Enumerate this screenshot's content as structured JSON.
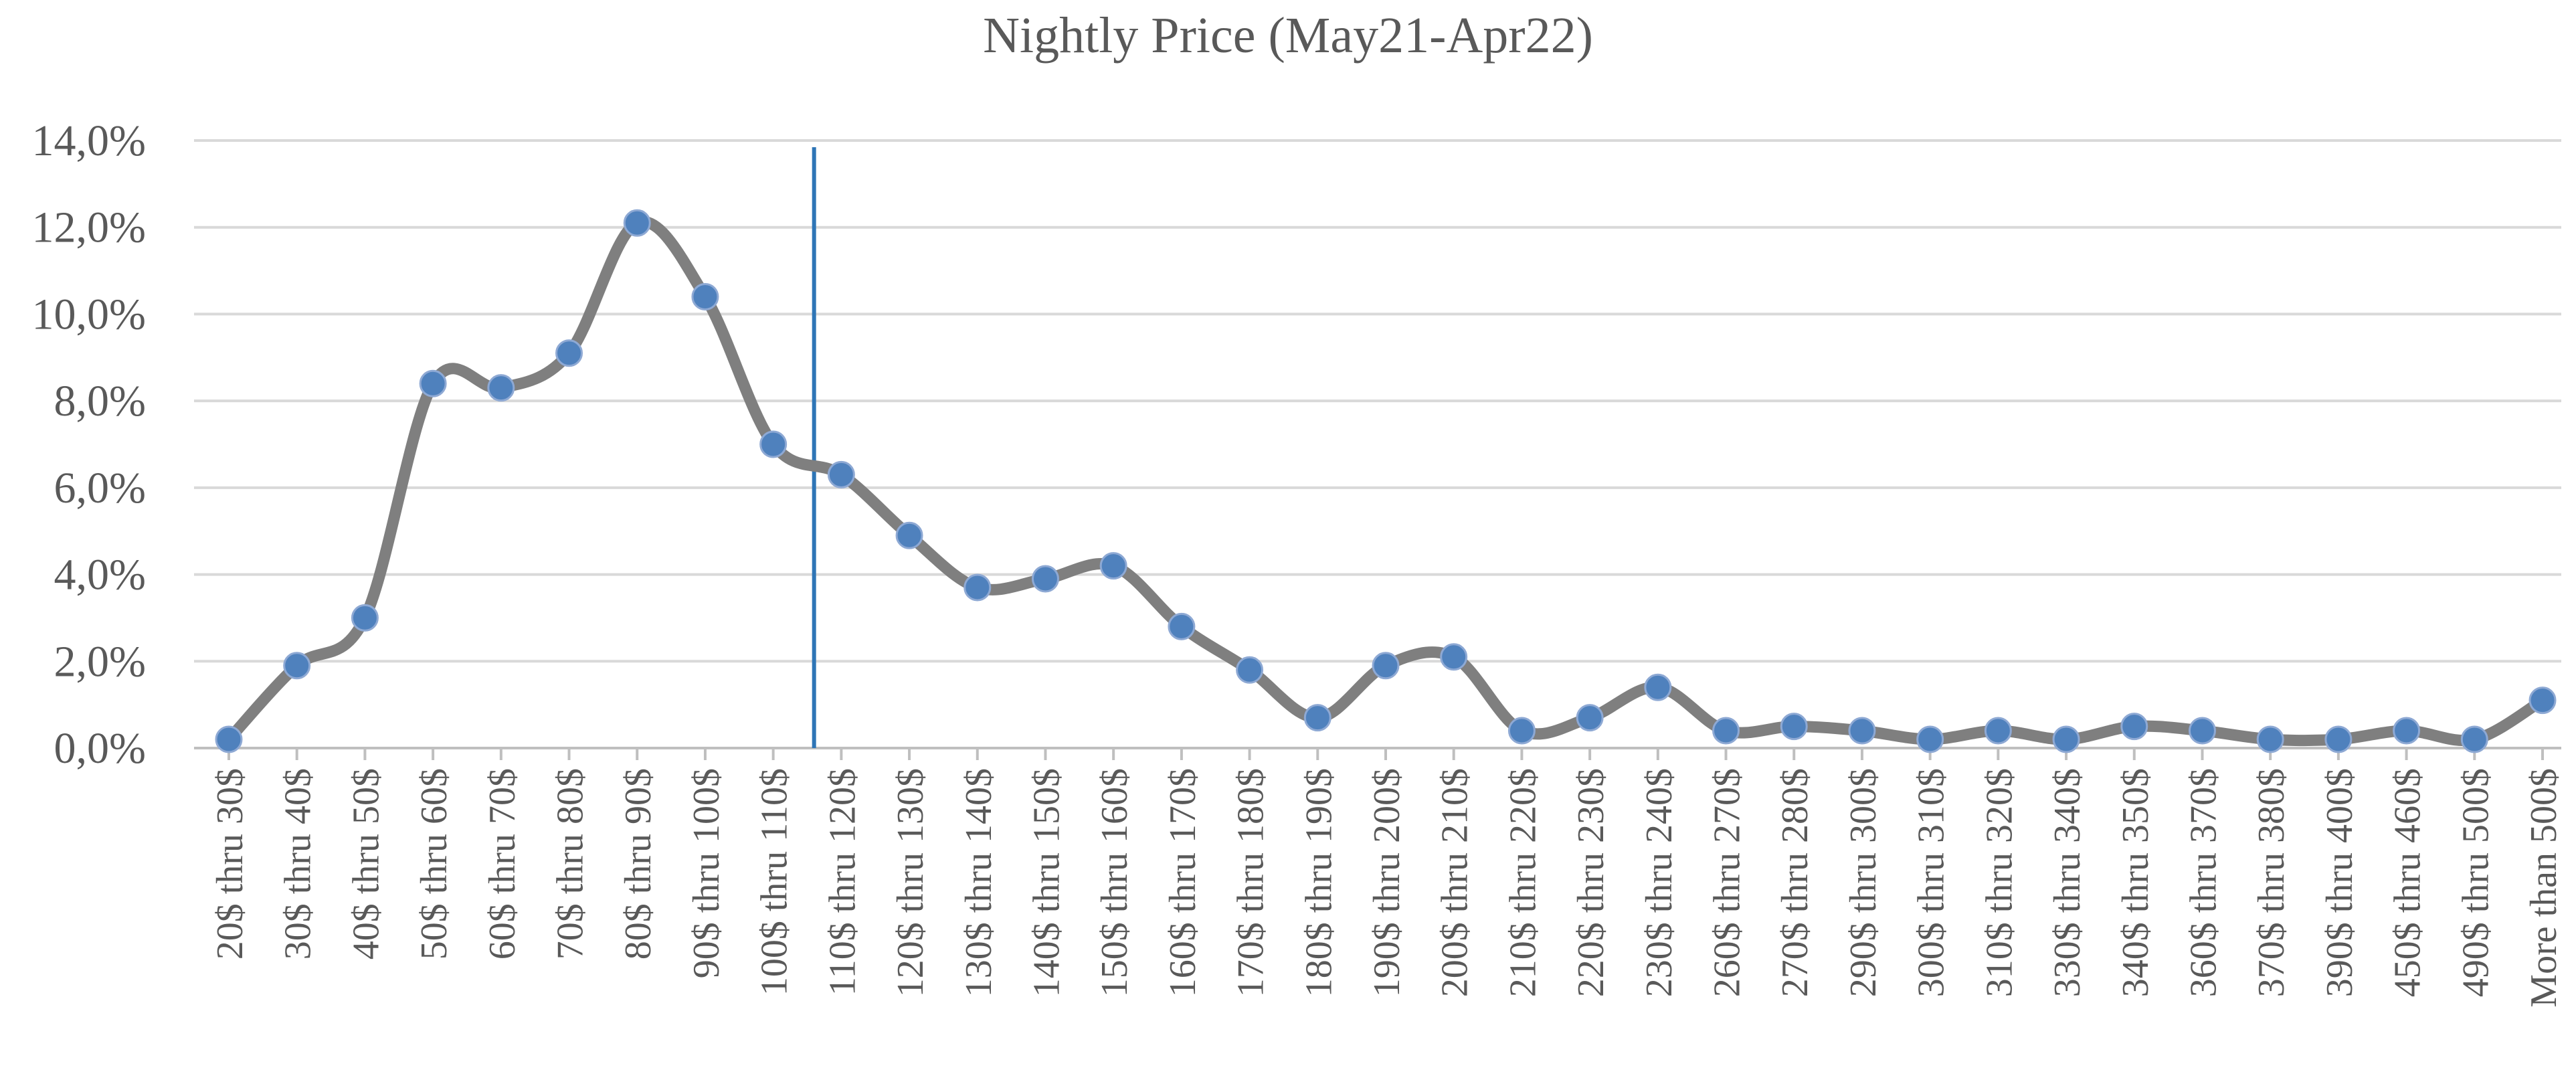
{
  "chart_data": {
    "type": "line",
    "title": "Nightly Price (May21-Apr22)",
    "xlabel": "",
    "ylabel": "",
    "ylim": [
      0,
      14
    ],
    "yticks": [
      0,
      2,
      4,
      6,
      8,
      10,
      12,
      14
    ],
    "ytick_labels": [
      "0,0%",
      "2,0%",
      "4,0%",
      "6,0%",
      "8,0%",
      "10,0%",
      "12,0%",
      "14,0%"
    ],
    "grid": true,
    "legend": "none",
    "categories": [
      "20$ thru 30$",
      "30$ thru 40$",
      "40$ thru 50$",
      "50$ thru 60$",
      "60$ thru 70$",
      "70$ thru 80$",
      "80$ thru 90$",
      "90$ thru 100$",
      "100$ thru 110$",
      "110$ thru 120$",
      "120$ thru 130$",
      "130$ thru 140$",
      "140$ thru 150$",
      "150$ thru 160$",
      "160$ thru 170$",
      "170$ thru 180$",
      "180$ thru 190$",
      "190$ thru 200$",
      "200$ thru 210$",
      "210$ thru 220$",
      "220$ thru 230$",
      "230$ thru 240$",
      "260$ thru 270$",
      "270$ thru 280$",
      "290$ thru 300$",
      "300$ thru 310$",
      "310$ thru 320$",
      "330$ thru 340$",
      "340$ thru 350$",
      "360$ thru 370$",
      "370$ thru 380$",
      "390$ thru 400$",
      "450$ thru 460$",
      "490$ thru 500$",
      "More than 500$"
    ],
    "series": [
      {
        "values": [
          0.2,
          1.9,
          3.0,
          8.4,
          8.3,
          9.1,
          12.1,
          10.4,
          7.0,
          6.3,
          4.9,
          3.7,
          3.9,
          4.2,
          2.8,
          1.8,
          0.7,
          1.9,
          2.1,
          0.4,
          0.7,
          1.4,
          0.4,
          0.5,
          0.4,
          0.2,
          0.4,
          0.2,
          0.5,
          0.4,
          0.2,
          0.2,
          0.4,
          0.2,
          1.1
        ]
      }
    ],
    "vertical_marker_category": "110$ thru 120$",
    "colors": {
      "line": "#7f7f7f",
      "marker": "#4f81bd",
      "vline": "#2e75b6"
    }
  }
}
